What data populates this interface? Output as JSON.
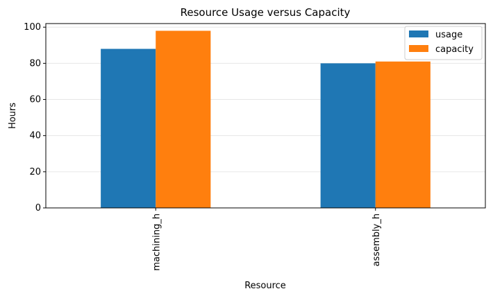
{
  "chart_data": {
    "type": "bar",
    "title": "Resource Usage versus Capacity",
    "xlabel": "Resource",
    "ylabel": "Hours",
    "categories": [
      "machining_h",
      "assembly_h"
    ],
    "series": [
      {
        "name": "usage",
        "values": [
          88,
          80
        ],
        "color": "#1f77b4"
      },
      {
        "name": "capacity",
        "values": [
          98,
          81
        ],
        "color": "#ff7f0e"
      }
    ],
    "ylim": [
      0,
      102
    ],
    "yticks": [
      0,
      20,
      40,
      60,
      80,
      100
    ],
    "grid": "horizontal",
    "legend_position": "top-right"
  }
}
